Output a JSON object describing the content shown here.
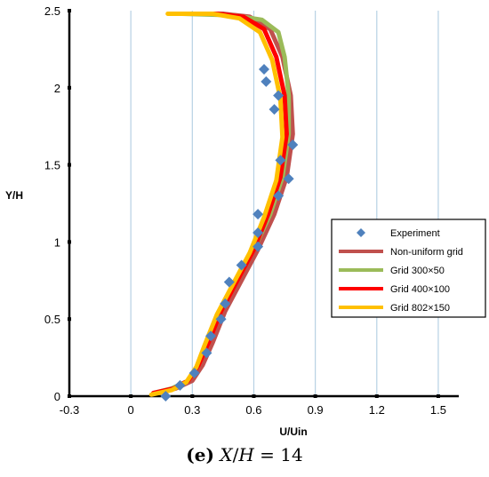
{
  "chart_data": {
    "type": "line",
    "xlabel": "U/Uin",
    "ylabel": "Y/H",
    "xlim": [
      -0.3,
      1.6
    ],
    "ylim": [
      0,
      2.5
    ],
    "x_ticks": [
      "-0.3",
      "0",
      "0.3",
      "0.6",
      "0.9",
      "1.2",
      "1.5"
    ],
    "y_ticks": [
      "0",
      "0.5",
      "1",
      "1.5",
      "2",
      "2.5"
    ],
    "grid": "vertical lines",
    "legend_position": "right",
    "series": [
      {
        "name": "Experiment",
        "kind": "scatter",
        "color": "#4f81bd",
        "points": [
          [
            0.17,
            0.0
          ],
          [
            0.24,
            0.07
          ],
          [
            0.31,
            0.15
          ],
          [
            0.37,
            0.28
          ],
          [
            0.39,
            0.39
          ],
          [
            0.44,
            0.5
          ],
          [
            0.46,
            0.6
          ],
          [
            0.48,
            0.74
          ],
          [
            0.54,
            0.85
          ],
          [
            0.62,
            0.97
          ],
          [
            0.62,
            1.06
          ],
          [
            0.62,
            1.18
          ],
          [
            0.72,
            1.3
          ],
          [
            0.77,
            1.41
          ],
          [
            0.73,
            1.53
          ],
          [
            0.79,
            1.63
          ],
          [
            0.7,
            1.86
          ],
          [
            0.72,
            1.95
          ],
          [
            0.66,
            2.04
          ],
          [
            0.65,
            2.12
          ]
        ]
      },
      {
        "name": "Non-uniform grid",
        "kind": "line",
        "color": "#c0504d",
        "points": [
          [
            0.12,
            0.02
          ],
          [
            0.22,
            0.05
          ],
          [
            0.3,
            0.1
          ],
          [
            0.35,
            0.2
          ],
          [
            0.4,
            0.35
          ],
          [
            0.46,
            0.55
          ],
          [
            0.54,
            0.75
          ],
          [
            0.62,
            0.95
          ],
          [
            0.7,
            1.18
          ],
          [
            0.76,
            1.42
          ],
          [
            0.79,
            1.7
          ],
          [
            0.78,
            1.95
          ],
          [
            0.74,
            2.2
          ],
          [
            0.68,
            2.38
          ],
          [
            0.58,
            2.46
          ],
          [
            0.45,
            2.48
          ],
          [
            0.22,
            2.48
          ]
        ]
      },
      {
        "name": "Grid 300×50",
        "kind": "line",
        "color": "#9bbb59",
        "points": [
          [
            0.11,
            0.02
          ],
          [
            0.2,
            0.05
          ],
          [
            0.28,
            0.1
          ],
          [
            0.33,
            0.2
          ],
          [
            0.38,
            0.35
          ],
          [
            0.44,
            0.55
          ],
          [
            0.52,
            0.75
          ],
          [
            0.6,
            0.95
          ],
          [
            0.68,
            1.18
          ],
          [
            0.74,
            1.42
          ],
          [
            0.77,
            1.7
          ],
          [
            0.77,
            1.95
          ],
          [
            0.75,
            2.2
          ],
          [
            0.72,
            2.36
          ],
          [
            0.64,
            2.44
          ],
          [
            0.5,
            2.47
          ],
          [
            0.25,
            2.48
          ]
        ]
      },
      {
        "name": "Grid 400×100",
        "kind": "line",
        "color": "#ff0000",
        "points": [
          [
            0.11,
            0.02
          ],
          [
            0.21,
            0.05
          ],
          [
            0.28,
            0.1
          ],
          [
            0.33,
            0.2
          ],
          [
            0.38,
            0.35
          ],
          [
            0.44,
            0.55
          ],
          [
            0.52,
            0.75
          ],
          [
            0.6,
            0.95
          ],
          [
            0.67,
            1.18
          ],
          [
            0.73,
            1.42
          ],
          [
            0.76,
            1.7
          ],
          [
            0.75,
            1.95
          ],
          [
            0.71,
            2.2
          ],
          [
            0.65,
            2.38
          ],
          [
            0.55,
            2.46
          ],
          [
            0.42,
            2.48
          ],
          [
            0.22,
            2.48
          ]
        ]
      },
      {
        "name": "Grid 802×150",
        "kind": "line",
        "color": "#ffc000",
        "points": [
          [
            0.1,
            0.01
          ],
          [
            0.2,
            0.04
          ],
          [
            0.27,
            0.09
          ],
          [
            0.32,
            0.19
          ],
          [
            0.36,
            0.33
          ],
          [
            0.42,
            0.53
          ],
          [
            0.5,
            0.73
          ],
          [
            0.58,
            0.93
          ],
          [
            0.65,
            1.16
          ],
          [
            0.71,
            1.4
          ],
          [
            0.74,
            1.68
          ],
          [
            0.73,
            1.93
          ],
          [
            0.69,
            2.18
          ],
          [
            0.63,
            2.36
          ],
          [
            0.53,
            2.45
          ],
          [
            0.4,
            2.48
          ],
          [
            0.18,
            2.48
          ]
        ]
      }
    ]
  },
  "caption": {
    "label": "(e)",
    "x": "X",
    "slash": "/",
    "h": "H",
    "equals": " = 14"
  }
}
